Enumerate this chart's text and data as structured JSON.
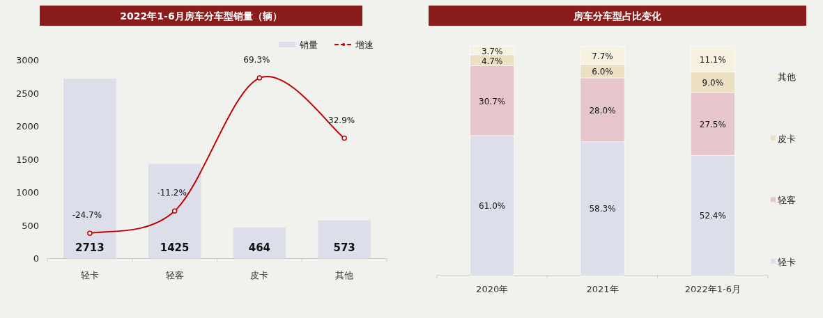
{
  "chart_data": [
    {
      "type": "bar",
      "title": "2022年1-6月房车分车型销量（辆）",
      "categories": [
        "轻卡",
        "轻客",
        "皮卡",
        "其他"
      ],
      "ylim": [
        0,
        3000
      ],
      "yticks": [
        0,
        500,
        1000,
        1500,
        2000,
        2500,
        3000
      ],
      "tick_labels": "xy",
      "legend": "top right",
      "series": [
        {
          "name": "销量",
          "type": "bar",
          "color": "#dcdee9",
          "values": [
            2713,
            1425,
            464,
            573
          ],
          "value_labels": [
            "2713",
            "1425",
            "464",
            "573"
          ]
        },
        {
          "name": "增速",
          "type": "line",
          "axis": "y2",
          "color": "#c00000",
          "marker": "circle",
          "values": [
            -24.7,
            -11.2,
            69.3,
            32.9
          ],
          "value_labels": [
            "-24.7%",
            "-11.2%",
            "69.3%",
            "32.9%"
          ]
        }
      ]
    },
    {
      "type": "bar",
      "title": "房车分车型占比变化",
      "categories": [
        "2020年",
        "2021年",
        "2022年1-6月"
      ],
      "stacked": true,
      "ylim": [
        0,
        100
      ],
      "tick_labels": "x",
      "legend": "right",
      "series": [
        {
          "name": "轻卡",
          "color": "#dcdee9",
          "values": [
            61.0,
            58.3,
            52.4
          ],
          "value_labels": [
            "61.0%",
            "58.3%",
            "52.4%"
          ]
        },
        {
          "name": "轻客",
          "color": "#e6c6ca",
          "values": [
            30.7,
            28.0,
            27.5
          ],
          "value_labels": [
            "30.7%",
            "28.0%",
            "27.5%"
          ]
        },
        {
          "name": "皮卡",
          "color": "#ebe1c2",
          "values": [
            4.7,
            6.0,
            9.0
          ],
          "value_labels": [
            "4.7%",
            "6.0%",
            "9.0%"
          ]
        },
        {
          "name": "其他",
          "color": "#f7f1e1",
          "values": [
            3.7,
            7.7,
            11.1
          ],
          "value_labels": [
            "3.7%",
            "7.7%",
            "11.1%"
          ]
        }
      ]
    }
  ]
}
